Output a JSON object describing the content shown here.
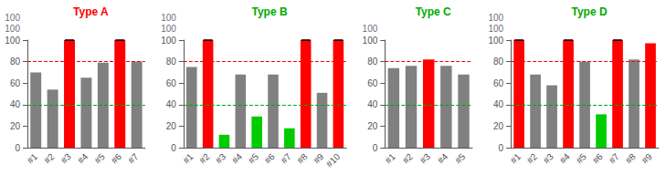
{
  "chart_data": [
    {
      "type": "bar",
      "title": "Type A",
      "title_color": "#ff0000",
      "categories": [
        "#1",
        "#2",
        "#3",
        "#4",
        "#5",
        "#6",
        "#7"
      ],
      "values": [
        70,
        54,
        100,
        65,
        79,
        100,
        80
      ],
      "colors": [
        "#808080",
        "#808080",
        "#ff0000",
        "#808080",
        "#808080",
        "#ff0000",
        "#808080"
      ],
      "above_range": [
        false,
        false,
        true,
        false,
        false,
        true,
        false
      ],
      "annotations": [
        "100",
        "100"
      ],
      "hlines": [
        {
          "y": 80,
          "color": "#ff0000",
          "line_style": "dashed"
        },
        {
          "y": 40,
          "color": "#00aa00",
          "line_style": "dashed"
        }
      ],
      "ylim": [
        0,
        100
      ],
      "yticks": [
        0,
        20,
        40,
        60,
        80,
        100
      ],
      "grid": false
    },
    {
      "type": "bar",
      "title": "Type B",
      "title_color": "#00aa00",
      "categories": [
        "#1",
        "#2",
        "#3",
        "#4",
        "#5",
        "#6",
        "#7",
        "#8",
        "#9",
        "#10"
      ],
      "values": [
        75,
        100,
        12,
        68,
        29,
        68,
        18,
        100,
        51,
        100
      ],
      "colors": [
        "#808080",
        "#ff0000",
        "#00cc00",
        "#808080",
        "#00cc00",
        "#808080",
        "#00cc00",
        "#ff0000",
        "#808080",
        "#ff0000"
      ],
      "above_range": [
        false,
        true,
        false,
        false,
        false,
        false,
        false,
        true,
        false,
        true
      ],
      "annotations": [
        "100",
        "100"
      ],
      "hlines": [
        {
          "y": 80,
          "color": "#ff0000",
          "line_style": "dashed"
        },
        {
          "y": 40,
          "color": "#00aa00",
          "line_style": "dashed"
        }
      ],
      "ylim": [
        0,
        100
      ],
      "yticks": [
        0,
        20,
        40,
        60,
        80,
        100
      ],
      "grid": false
    },
    {
      "type": "bar",
      "title": "Type C",
      "title_color": "#00aa00",
      "categories": [
        "#1",
        "#2",
        "#3",
        "#4",
        "#5"
      ],
      "values": [
        74,
        76,
        82,
        76,
        68
      ],
      "colors": [
        "#808080",
        "#808080",
        "#ff0000",
        "#808080",
        "#808080"
      ],
      "above_range": [
        false,
        false,
        false,
        false,
        false
      ],
      "annotations": [
        "100"
      ],
      "hlines": [
        {
          "y": 80,
          "color": "#ff0000",
          "line_style": "dashed"
        },
        {
          "y": 40,
          "color": "#00aa00",
          "line_style": "dashed"
        }
      ],
      "ylim": [
        0,
        100
      ],
      "yticks": [
        0,
        20,
        40,
        60,
        80,
        100
      ],
      "grid": false
    },
    {
      "type": "bar",
      "title": "Type D",
      "title_color": "#00aa00",
      "categories": [
        "#1",
        "#2",
        "#3",
        "#4",
        "#5",
        "#6",
        "#7",
        "#8",
        "#9"
      ],
      "values": [
        100,
        68,
        58,
        100,
        80,
        31,
        100,
        82,
        97
      ],
      "colors": [
        "#ff0000",
        "#808080",
        "#808080",
        "#ff0000",
        "#808080",
        "#00cc00",
        "#ff0000",
        "#808080",
        "#ff0000"
      ],
      "above_range": [
        true,
        false,
        false,
        true,
        false,
        false,
        true,
        false,
        false
      ],
      "annotations": [
        "100",
        "100"
      ],
      "hlines": [
        {
          "y": 80,
          "color": "#ff0000",
          "line_style": "dashed"
        },
        {
          "y": 40,
          "color": "#00aa00",
          "line_style": "dashed"
        }
      ],
      "ylim": [
        0,
        100
      ],
      "yticks": [
        0,
        20,
        40,
        60,
        80,
        100
      ],
      "grid": false
    }
  ]
}
